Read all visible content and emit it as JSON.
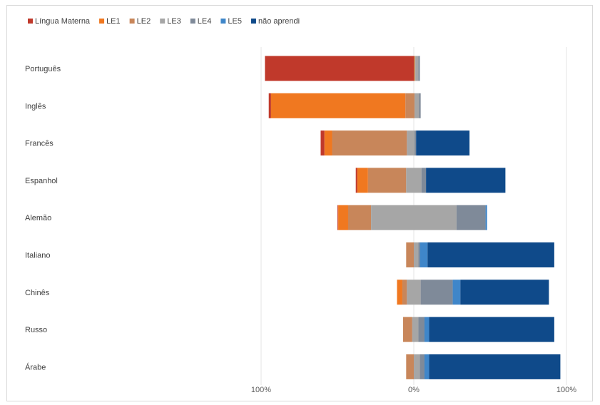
{
  "chart_data": {
    "type": "bar",
    "stacked": true,
    "orientation": "horizontal",
    "diverging": true,
    "legend_position": "top-left",
    "xlim": [
      -100,
      100
    ],
    "x_tick_labels": [
      "100%",
      "0%",
      "100%"
    ],
    "categories": [
      "Português",
      "Inglês",
      "Francês",
      "Espanhol",
      "Alemão",
      "Italiano",
      "Chinês",
      "Russo",
      "Árabe"
    ],
    "series": [
      {
        "name": "Língua Materna",
        "color": "#c0392b",
        "values": [
          97.5,
          1.5,
          2.5,
          1.0,
          0.5,
          0.0,
          0.0,
          0.0,
          0.0
        ]
      },
      {
        "name": "LE1",
        "color": "#f07820",
        "values": [
          0.0,
          88.0,
          5.0,
          7.0,
          6.5,
          0.0,
          3.5,
          0.0,
          0.0
        ]
      },
      {
        "name": "LE2",
        "color": "#c8865a",
        "values": [
          1.0,
          6.0,
          49.0,
          25.0,
          15.0,
          5.0,
          3.0,
          6.0,
          5.0
        ]
      },
      {
        "name": "LE3",
        "color": "#a6a6a6",
        "values": [
          2.0,
          3.0,
          5.0,
          10.0,
          56.0,
          3.0,
          9.0,
          4.0,
          4.0
        ]
      },
      {
        "name": "LE4",
        "color": "#7f8a99",
        "values": [
          1.0,
          1.0,
          1.0,
          3.0,
          19.0,
          1.0,
          21.0,
          4.0,
          3.0
        ]
      },
      {
        "name": "LE5",
        "color": "#3f86c9",
        "values": [
          0.0,
          0.0,
          0.0,
          0.0,
          1.0,
          5.0,
          5.0,
          3.0,
          3.0
        ]
      },
      {
        "name": "não aprendi",
        "color": "#0f4a8a",
        "values": [
          0.0,
          0.0,
          35.0,
          52.0,
          0.0,
          83.0,
          58.0,
          82.0,
          86.0
        ]
      }
    ],
    "bar_offsets": [
      -97.5,
      -95.0,
      -61.0,
      -38.0,
      -50.0,
      -5.0,
      -11.0,
      -7.0,
      -5.0
    ]
  }
}
